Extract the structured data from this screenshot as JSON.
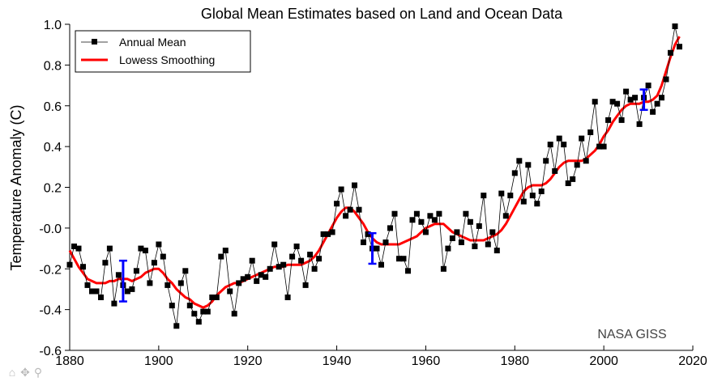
{
  "chart_data": {
    "type": "line",
    "title": "Global Mean Estimates based on Land and Ocean Data",
    "xlabel": "",
    "ylabel": "Temperature Anomaly (C)",
    "xlim": [
      1880,
      2020
    ],
    "ylim": [
      -0.6,
      1.0
    ],
    "xticks": [
      1880,
      1900,
      1920,
      1940,
      1960,
      1980,
      2000,
      2020
    ],
    "xtick_labels": [
      "1880",
      "1900",
      "1920",
      "1940",
      "1960",
      "1980",
      "2000",
      "2020"
    ],
    "yticks": [
      -0.6,
      -0.4,
      -0.2,
      0.0,
      0.2,
      0.4,
      0.6,
      0.8,
      1.0
    ],
    "ytick_labels": [
      "-0.6",
      "-0.4",
      "-0.2",
      "-0.0",
      "0.2",
      "0.4",
      "0.6",
      "0.8",
      "1.0"
    ],
    "grid": false,
    "legend": {
      "placement": "top-left",
      "entries": [
        "Annual Mean",
        "Lowess Smoothing"
      ]
    },
    "annotation": "NASA GISS",
    "x_start": 1880,
    "series": [
      {
        "name": "Annual Mean",
        "color": "#000000",
        "marker": "square",
        "values": [
          -0.18,
          -0.09,
          -0.1,
          -0.19,
          -0.28,
          -0.31,
          -0.31,
          -0.34,
          -0.17,
          -0.1,
          -0.37,
          -0.23,
          -0.28,
          -0.31,
          -0.3,
          -0.21,
          -0.1,
          -0.11,
          -0.27,
          -0.17,
          -0.08,
          -0.14,
          -0.28,
          -0.38,
          -0.48,
          -0.27,
          -0.21,
          -0.38,
          -0.42,
          -0.46,
          -0.41,
          -0.41,
          -0.34,
          -0.34,
          -0.14,
          -0.11,
          -0.31,
          -0.42,
          -0.27,
          -0.25,
          -0.24,
          -0.16,
          -0.26,
          -0.23,
          -0.24,
          -0.2,
          -0.08,
          -0.19,
          -0.18,
          -0.34,
          -0.14,
          -0.09,
          -0.16,
          -0.28,
          -0.13,
          -0.2,
          -0.15,
          -0.03,
          -0.03,
          -0.02,
          0.12,
          0.19,
          0.06,
          0.09,
          0.21,
          0.09,
          -0.07,
          -0.03,
          -0.1,
          -0.1,
          -0.18,
          -0.07,
          0.0,
          0.07,
          -0.15,
          -0.15,
          -0.21,
          0.04,
          0.07,
          0.03,
          -0.02,
          0.06,
          0.04,
          0.07,
          -0.2,
          -0.1,
          -0.05,
          -0.02,
          -0.07,
          0.07,
          0.03,
          -0.09,
          0.01,
          0.16,
          -0.08,
          -0.02,
          -0.11,
          0.17,
          0.06,
          0.16,
          0.27,
          0.33,
          0.13,
          0.31,
          0.16,
          0.12,
          0.18,
          0.33,
          0.41,
          0.28,
          0.44,
          0.41,
          0.22,
          0.24,
          0.31,
          0.44,
          0.33,
          0.47,
          0.62,
          0.4,
          0.4,
          0.53,
          0.62,
          0.61,
          0.53,
          0.67,
          0.63,
          0.64,
          0.51,
          0.64,
          0.7,
          0.57,
          0.61,
          0.64,
          0.73,
          0.86,
          0.99,
          0.89
        ]
      },
      {
        "name": "Lowess Smoothing",
        "color": "#ff0000",
        "values": [
          -0.11,
          -0.15,
          -0.19,
          -0.22,
          -0.25,
          -0.26,
          -0.27,
          -0.27,
          -0.27,
          -0.26,
          -0.26,
          -0.25,
          -0.25,
          -0.25,
          -0.26,
          -0.25,
          -0.24,
          -0.22,
          -0.21,
          -0.2,
          -0.2,
          -0.22,
          -0.25,
          -0.27,
          -0.3,
          -0.32,
          -0.34,
          -0.35,
          -0.37,
          -0.38,
          -0.39,
          -0.38,
          -0.36,
          -0.33,
          -0.31,
          -0.29,
          -0.28,
          -0.27,
          -0.27,
          -0.26,
          -0.25,
          -0.24,
          -0.23,
          -0.22,
          -0.21,
          -0.2,
          -0.19,
          -0.19,
          -0.19,
          -0.18,
          -0.18,
          -0.18,
          -0.18,
          -0.17,
          -0.16,
          -0.14,
          -0.11,
          -0.07,
          -0.03,
          0.01,
          0.05,
          0.08,
          0.1,
          0.1,
          0.08,
          0.05,
          0.02,
          -0.02,
          -0.05,
          -0.07,
          -0.08,
          -0.08,
          -0.08,
          -0.08,
          -0.08,
          -0.07,
          -0.06,
          -0.05,
          -0.04,
          -0.02,
          0.0,
          0.01,
          0.02,
          0.02,
          0.02,
          0.0,
          -0.02,
          -0.03,
          -0.04,
          -0.05,
          -0.06,
          -0.06,
          -0.06,
          -0.06,
          -0.05,
          -0.04,
          -0.03,
          -0.01,
          0.02,
          0.06,
          0.1,
          0.14,
          0.18,
          0.2,
          0.21,
          0.21,
          0.21,
          0.22,
          0.24,
          0.27,
          0.3,
          0.32,
          0.33,
          0.33,
          0.33,
          0.33,
          0.34,
          0.36,
          0.38,
          0.41,
          0.45,
          0.48,
          0.52,
          0.55,
          0.58,
          0.6,
          0.61,
          0.61,
          0.61,
          0.62,
          0.62,
          0.63,
          0.65,
          0.7,
          0.77,
          0.84,
          0.9,
          0.94
        ]
      }
    ],
    "error_bars": [
      {
        "x": 1892,
        "y": -0.26,
        "low": -0.36,
        "high": -0.16,
        "color": "#0000ff"
      },
      {
        "x": 1948,
        "y": -0.1,
        "low": -0.175,
        "high": -0.025,
        "color": "#0000ff"
      },
      {
        "x": 2009,
        "y": 0.63,
        "low": 0.58,
        "high": 0.68,
        "color": "#0000ff"
      }
    ]
  },
  "toolbar": {
    "home_icon": "⌂",
    "pan_icon": "✥",
    "zoom_icon": "⚲"
  }
}
